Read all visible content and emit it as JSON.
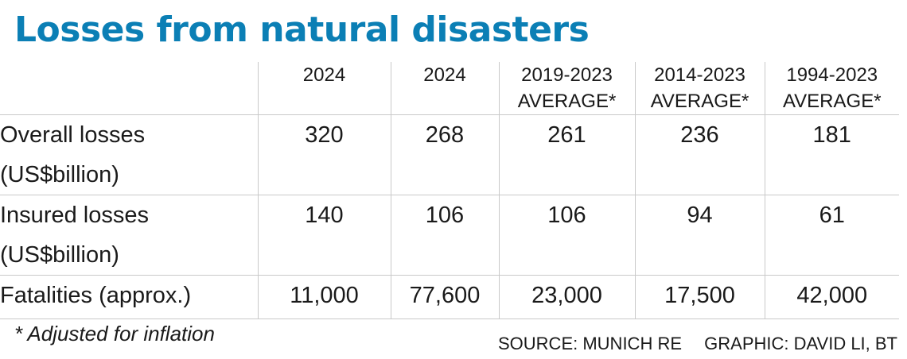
{
  "title": "Losses from natural disasters",
  "chart_data": {
    "type": "table",
    "title": "Losses from natural disasters",
    "columns": [
      {
        "line1": "2024",
        "line2": ""
      },
      {
        "line1": "2024",
        "line2": ""
      },
      {
        "line1": "2019-2023",
        "line2": "AVERAGE*"
      },
      {
        "line1": "2014-2023",
        "line2": "AVERAGE*"
      },
      {
        "line1": "1994-2023",
        "line2": "AVERAGE*"
      }
    ],
    "rows": [
      {
        "label1": "Overall losses",
        "label2": "(US$billion)",
        "values": [
          "320",
          "268",
          "261",
          "236",
          "181"
        ]
      },
      {
        "label1": "Insured losses",
        "label2": "(US$billion)",
        "values": [
          "140",
          "106",
          "106",
          "94",
          "61"
        ]
      },
      {
        "label1": "Fatalities (approx.)",
        "label2": "",
        "values": [
          "11,000",
          "77,600",
          "23,000",
          "17,500",
          "42,000"
        ]
      }
    ]
  },
  "footnote": "* Adjusted for inflation",
  "source": "SOURCE: MUNICH RE",
  "graphic": "GRAPHIC: DAVID LI, BT"
}
